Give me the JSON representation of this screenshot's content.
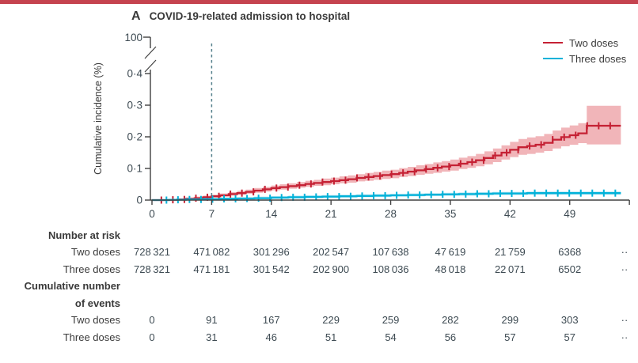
{
  "accent_bar": {
    "color": "#c5434f"
  },
  "panel": {
    "label": "A",
    "title": "COVID-19-related admission to hospital"
  },
  "legend": {
    "items": [
      {
        "label": "Two doses",
        "color": "#c52134"
      },
      {
        "label": "Three doses",
        "color": "#00b2d9"
      }
    ]
  },
  "chart_data": {
    "type": "line",
    "variant": "step-cumulative-incidence-with-ci-bands",
    "title": "COVID-19-related admission to hospital",
    "xlabel": "",
    "ylabel": "Cumulative incidence (%)",
    "grid": false,
    "legend_position": "top-right",
    "y_axis": {
      "tick_values": [
        0,
        0.1,
        0.2,
        0.3,
        0.4
      ],
      "tick_labels": [
        "0",
        "0·1",
        "0·2",
        "0·3",
        "0·4"
      ],
      "break_top_label": "100",
      "has_axis_break": true,
      "units": "%"
    },
    "x_axis": {
      "tick_values": [
        0,
        7,
        14,
        21,
        28,
        35,
        42,
        49
      ],
      "tick_labels": [
        "0",
        "7",
        "14",
        "21",
        "28",
        "35",
        "42",
        "49"
      ],
      "max": 56,
      "units": "days"
    },
    "reference_line": {
      "x": 7,
      "style": "dashed",
      "color": "#55808c"
    },
    "series": [
      {
        "name": "Two doses",
        "color": "#c52134",
        "band_color": "#f1b5b9",
        "days": [
          0,
          2,
          3,
          4,
          5,
          6,
          7,
          8,
          9,
          10,
          11,
          12,
          13,
          14,
          15,
          16,
          17,
          18,
          19,
          20,
          21,
          22,
          23,
          24,
          25,
          26,
          27,
          28,
          29,
          30,
          31,
          32,
          33,
          34,
          35,
          36,
          37,
          38,
          39,
          40,
          41,
          42,
          43,
          44,
          45,
          46,
          47,
          48,
          49,
          50,
          51,
          55
        ],
        "est": [
          0,
          0.001,
          0.002,
          0.004,
          0.006,
          0.009,
          0.012,
          0.015,
          0.019,
          0.022,
          0.026,
          0.03,
          0.034,
          0.038,
          0.041,
          0.044,
          0.047,
          0.051,
          0.054,
          0.057,
          0.06,
          0.063,
          0.066,
          0.07,
          0.073,
          0.076,
          0.079,
          0.082,
          0.086,
          0.09,
          0.094,
          0.098,
          0.102,
          0.106,
          0.11,
          0.115,
          0.12,
          0.126,
          0.133,
          0.141,
          0.15,
          0.159,
          0.167,
          0.171,
          0.175,
          0.181,
          0.191,
          0.199,
          0.205,
          0.211,
          0.235,
          0.235
        ],
        "lo": [
          0,
          0,
          0.001,
          0.002,
          0.003,
          0.005,
          0.008,
          0.011,
          0.014,
          0.017,
          0.02,
          0.023,
          0.027,
          0.031,
          0.033,
          0.036,
          0.039,
          0.042,
          0.045,
          0.047,
          0.05,
          0.053,
          0.055,
          0.059,
          0.061,
          0.064,
          0.067,
          0.069,
          0.073,
          0.076,
          0.08,
          0.083,
          0.086,
          0.09,
          0.093,
          0.098,
          0.102,
          0.107,
          0.113,
          0.12,
          0.128,
          0.136,
          0.143,
          0.146,
          0.15,
          0.155,
          0.163,
          0.17,
          0.175,
          0.18,
          0.176,
          0.176
        ],
        "hi": [
          0,
          0.003,
          0.005,
          0.008,
          0.011,
          0.014,
          0.017,
          0.021,
          0.025,
          0.029,
          0.033,
          0.038,
          0.042,
          0.046,
          0.05,
          0.053,
          0.057,
          0.061,
          0.064,
          0.068,
          0.071,
          0.075,
          0.078,
          0.082,
          0.086,
          0.089,
          0.093,
          0.096,
          0.101,
          0.105,
          0.11,
          0.114,
          0.119,
          0.123,
          0.128,
          0.134,
          0.139,
          0.146,
          0.154,
          0.163,
          0.173,
          0.184,
          0.193,
          0.198,
          0.202,
          0.209,
          0.22,
          0.229,
          0.236,
          0.243,
          0.298,
          0.298
        ],
        "censor_marks": {
          "start": 1.1,
          "step": 1.35,
          "end": 54.6
        }
      },
      {
        "name": "Three doses",
        "color": "#00b2d9",
        "band_color": "#b5e3f0",
        "days": [
          0,
          2,
          4,
          6,
          8,
          10,
          12,
          14,
          16,
          18,
          20,
          22,
          24,
          26,
          28,
          30,
          32,
          34,
          36,
          38,
          40,
          42,
          44,
          46,
          48,
          50,
          55
        ],
        "est": [
          0,
          0.001,
          0.002,
          0.003,
          0.004,
          0.005,
          0.006,
          0.008,
          0.009,
          0.01,
          0.011,
          0.012,
          0.013,
          0.014,
          0.015,
          0.016,
          0.017,
          0.018,
          0.019,
          0.02,
          0.021,
          0.021,
          0.022,
          0.022,
          0.022,
          0.022,
          0.022
        ],
        "lo": [
          0,
          0,
          0,
          0.001,
          0.001,
          0.002,
          0.003,
          0.004,
          0.005,
          0.006,
          0.007,
          0.008,
          0.009,
          0.01,
          0.011,
          0.012,
          0.013,
          0.014,
          0.014,
          0.015,
          0.016,
          0.016,
          0.017,
          0.017,
          0.017,
          0.017,
          0.017
        ],
        "hi": [
          0.001,
          0.003,
          0.005,
          0.006,
          0.008,
          0.009,
          0.011,
          0.012,
          0.014,
          0.015,
          0.016,
          0.017,
          0.018,
          0.019,
          0.02,
          0.021,
          0.022,
          0.023,
          0.024,
          0.025,
          0.026,
          0.026,
          0.027,
          0.027,
          0.027,
          0.027,
          0.027
        ],
        "censor_marks": {
          "start": 1.7,
          "step": 1.35,
          "end": 54.6
        }
      }
    ]
  },
  "risk_table": {
    "header": "Number at risk",
    "rows": [
      {
        "label": "Two doses",
        "values": [
          "728 321",
          "471 082",
          "301 296",
          "202 547",
          "107 638",
          "47 619",
          "21 759",
          "6368",
          "··"
        ]
      },
      {
        "label": "Three doses",
        "values": [
          "728 321",
          "471 181",
          "301 542",
          "202 900",
          "108 036",
          "48 018",
          "22 071",
          "6502",
          "··"
        ]
      }
    ]
  },
  "events_table": {
    "header_line1": "Cumulative number",
    "header_line2": "of events",
    "rows": [
      {
        "label": "Two doses",
        "values": [
          "0",
          "91",
          "167",
          "229",
          "259",
          "282",
          "299",
          "303",
          "··"
        ]
      },
      {
        "label": "Three doses",
        "values": [
          "0",
          "31",
          "46",
          "51",
          "54",
          "56",
          "57",
          "57",
          "··"
        ]
      }
    ]
  }
}
